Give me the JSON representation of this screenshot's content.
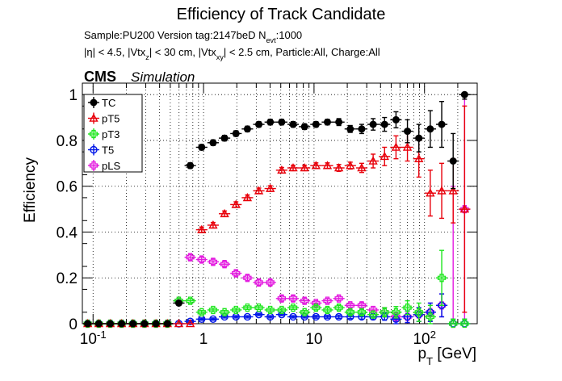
{
  "chart_data": {
    "type": "scatter",
    "title": "Efficiency of Track Candidate",
    "subtitle_lines": [
      "Sample:PU200   Version tag:2147beD  N_evt:1000",
      "|η| < 4.5, |Vtx_z| < 30 cm, |Vtx_xy| < 2.5 cm, Particle:All, Charge:All"
    ],
    "cms_label": "CMS",
    "cms_sublabel": "Simulation",
    "xlabel": "p_T [GeV]",
    "ylabel": "Efficiency",
    "x_scale": "log",
    "xlim": [
      0.08,
      300
    ],
    "ylim": [
      0,
      1.05
    ],
    "grid": true,
    "legend_position": "top-left",
    "y_ticks": [
      {
        "value": 0,
        "label": "0"
      },
      {
        "value": 0.2,
        "label": "0.2"
      },
      {
        "value": 0.4,
        "label": "0.4"
      },
      {
        "value": 0.6,
        "label": "0.6"
      },
      {
        "value": 0.8,
        "label": "0.8"
      },
      {
        "value": 1,
        "label": "1"
      }
    ],
    "x_ticks": [
      {
        "value": 0.1,
        "label": "10^-1"
      },
      {
        "value": 1,
        "label": "1"
      },
      {
        "value": 10,
        "label": "10"
      },
      {
        "value": 100,
        "label": "10^2"
      }
    ],
    "bin_edges": [
      0.08,
      0.1,
      0.127,
      0.161,
      0.204,
      0.259,
      0.329,
      0.418,
      0.53,
      0.673,
      0.854,
      1.083,
      1.375,
      1.745,
      2.215,
      2.81,
      3.566,
      4.525,
      5.742,
      7.287,
      9.247,
      11.73,
      14.89,
      18.9,
      23.98,
      30.43,
      38.62,
      49.01,
      62.19,
      78.92,
      100.1,
      127.1,
      161.3,
      204.7,
      259.7
    ],
    "bin_edges_display": "interior",
    "series": [
      {
        "name": "TC",
        "color": "#000000",
        "marker": "filled-circle",
        "values": [
          0,
          0,
          0,
          0,
          0,
          0,
          0,
          0,
          0.09,
          0.69,
          0.77,
          0.79,
          0.81,
          0.83,
          0.85,
          0.87,
          0.88,
          0.88,
          0.87,
          0.86,
          0.87,
          0.88,
          0.88,
          0.85,
          0.85,
          0.87,
          0.87,
          0.89,
          0.84,
          0.81,
          0.85,
          0.87,
          0.71,
          1.0
        ],
        "errors": [
          0,
          0,
          0,
          0,
          0,
          0,
          0,
          0,
          0.01,
          0.012,
          0.012,
          0.012,
          0.012,
          0.012,
          0.012,
          0.012,
          0.012,
          0.012,
          0.012,
          0.012,
          0.012,
          0.012,
          0.015,
          0.015,
          0.02,
          0.025,
          0.03,
          0.035,
          0.05,
          0.06,
          0.08,
          0.1,
          0.12,
          0.02
        ]
      },
      {
        "name": "pT5",
        "color": "#e8000b",
        "marker": "open-triangle",
        "values": [
          0,
          0,
          0,
          0,
          0,
          0,
          0,
          0,
          0,
          0,
          0.41,
          0.43,
          0.48,
          0.52,
          0.55,
          0.58,
          0.59,
          0.67,
          0.68,
          0.68,
          0.69,
          0.69,
          0.68,
          0.69,
          0.68,
          0.71,
          0.73,
          0.77,
          0.77,
          0.72,
          0.57,
          0.58,
          0.58,
          0.5
        ],
        "errors": [
          0,
          0,
          0,
          0,
          0,
          0,
          0,
          0,
          0,
          0,
          0.012,
          0.012,
          0.012,
          0.012,
          0.012,
          0.012,
          0.012,
          0.012,
          0.012,
          0.012,
          0.012,
          0.012,
          0.015,
          0.015,
          0.02,
          0.03,
          0.04,
          0.05,
          0.06,
          0.08,
          0.1,
          0.12,
          0.14,
          0.45
        ]
      },
      {
        "name": "pT3",
        "color": "#1ee61e",
        "marker": "open-cross",
        "values": [
          0,
          0,
          0,
          0,
          0,
          0,
          0,
          0,
          0.1,
          0.1,
          0.05,
          0.06,
          0.05,
          0.06,
          0.07,
          0.07,
          0.06,
          0.06,
          0.07,
          0.05,
          0.07,
          0.06,
          0.07,
          0.05,
          0.05,
          0.04,
          0.05,
          0.05,
          0.07,
          0.05,
          0.03,
          0.2,
          0.0,
          0.0
        ],
        "errors": [
          0,
          0,
          0,
          0,
          0,
          0,
          0,
          0,
          0.01,
          0.01,
          0.008,
          0.008,
          0.008,
          0.008,
          0.008,
          0.008,
          0.008,
          0.008,
          0.008,
          0.008,
          0.01,
          0.01,
          0.01,
          0.01,
          0.012,
          0.015,
          0.02,
          0.025,
          0.03,
          0.04,
          0.05,
          0.12,
          0.02,
          0.02
        ]
      },
      {
        "name": "T5",
        "color": "#0016e8",
        "marker": "open-circle",
        "values": [
          0,
          0,
          0,
          0,
          0,
          0,
          0,
          0,
          0,
          0.01,
          0.02,
          0.02,
          0.03,
          0.03,
          0.03,
          0.04,
          0.03,
          0.04,
          0.03,
          0.03,
          0.03,
          0.03,
          0.03,
          0.03,
          0.03,
          0.03,
          0.03,
          0.02,
          0.03,
          0.04,
          0.05,
          0.08,
          0.0,
          0.0
        ],
        "errors": [
          0,
          0,
          0,
          0,
          0,
          0,
          0,
          0,
          0,
          0.005,
          0.005,
          0.005,
          0.005,
          0.005,
          0.005,
          0.005,
          0.005,
          0.005,
          0.005,
          0.005,
          0.006,
          0.006,
          0.007,
          0.008,
          0.01,
          0.012,
          0.015,
          0.02,
          0.025,
          0.03,
          0.04,
          0.05,
          0.02,
          0.02
        ]
      },
      {
        "name": "pLS",
        "color": "#e31adf",
        "marker": "open-cross",
        "values": [
          0,
          0,
          0,
          0,
          0,
          0,
          0,
          0,
          0.1,
          0.29,
          0.28,
          0.27,
          0.26,
          0.22,
          0.2,
          0.18,
          0.18,
          0.11,
          0.11,
          0.1,
          0.09,
          0.1,
          0.11,
          0.08,
          0.08,
          0.06,
          0.05,
          0.03,
          0.03,
          0.04,
          0.05,
          0.08,
          0.0,
          0.5
        ],
        "errors": [
          0,
          0,
          0,
          0,
          0,
          0,
          0,
          0,
          0.01,
          0.012,
          0.012,
          0.012,
          0.012,
          0.012,
          0.012,
          0.012,
          0.012,
          0.012,
          0.012,
          0.012,
          0.01,
          0.01,
          0.01,
          0.01,
          0.012,
          0.015,
          0.02,
          0.02,
          0.025,
          0.03,
          0.04,
          0.05,
          0.6,
          0.5
        ]
      }
    ]
  }
}
